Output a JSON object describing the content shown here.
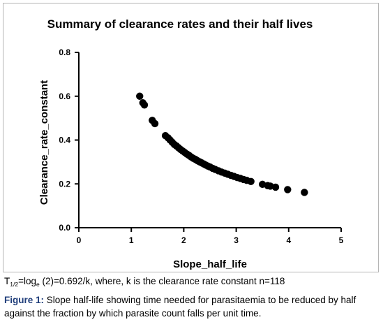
{
  "chart_data": {
    "type": "scatter",
    "title": "Summary of clearance rates and their half lives",
    "xlabel": "Slope_half_life",
    "ylabel": "Clearance_rate_constant",
    "xlim": [
      0,
      5
    ],
    "ylim": [
      0,
      0.8
    ],
    "xticks": [
      "0",
      "1",
      "2",
      "3",
      "4",
      "5"
    ],
    "yticks": [
      "0.0",
      "0.2",
      "0.4",
      "0.6",
      "0.8"
    ],
    "grid": false,
    "point_color": "#000000",
    "points": [
      [
        1.16,
        0.6
      ],
      [
        1.22,
        0.57
      ],
      [
        1.25,
        0.56
      ],
      [
        1.4,
        0.49
      ],
      [
        1.45,
        0.475
      ],
      [
        1.65,
        0.42
      ],
      [
        1.7,
        0.41
      ],
      [
        1.74,
        0.4
      ],
      [
        1.78,
        0.39
      ],
      [
        1.82,
        0.38
      ],
      [
        1.86,
        0.373
      ],
      [
        1.9,
        0.365
      ],
      [
        1.94,
        0.357
      ],
      [
        1.98,
        0.35
      ],
      [
        2.02,
        0.343
      ],
      [
        2.06,
        0.336
      ],
      [
        2.1,
        0.33
      ],
      [
        2.14,
        0.323
      ],
      [
        2.18,
        0.317
      ],
      [
        2.22,
        0.312
      ],
      [
        2.26,
        0.306
      ],
      [
        2.3,
        0.301
      ],
      [
        2.34,
        0.296
      ],
      [
        2.38,
        0.291
      ],
      [
        2.42,
        0.286
      ],
      [
        2.46,
        0.281
      ],
      [
        2.5,
        0.277
      ],
      [
        2.55,
        0.271
      ],
      [
        2.6,
        0.266
      ],
      [
        2.66,
        0.26
      ],
      [
        2.72,
        0.254
      ],
      [
        2.78,
        0.249
      ],
      [
        2.84,
        0.244
      ],
      [
        2.9,
        0.239
      ],
      [
        2.96,
        0.234
      ],
      [
        3.02,
        0.229
      ],
      [
        3.08,
        0.225
      ],
      [
        3.14,
        0.22
      ],
      [
        3.2,
        0.216
      ],
      [
        3.28,
        0.211
      ],
      [
        3.5,
        0.198
      ],
      [
        3.6,
        0.192
      ],
      [
        3.65,
        0.19
      ],
      [
        3.75,
        0.185
      ],
      [
        3.98,
        0.174
      ],
      [
        4.3,
        0.161
      ]
    ]
  },
  "formula": {
    "t": "T",
    "t_sub": "1/2",
    "eq_part1": "=log",
    "log_sub": "e",
    "eq_part2": " (2)=0.692/k, where, k is the clearance rate constant n=118"
  },
  "caption": {
    "label": "Figure 1:",
    "text": " Slope half-life showing time needed for parasitaemia to be reduced by half against the fraction by which parasite count falls per unit time."
  }
}
